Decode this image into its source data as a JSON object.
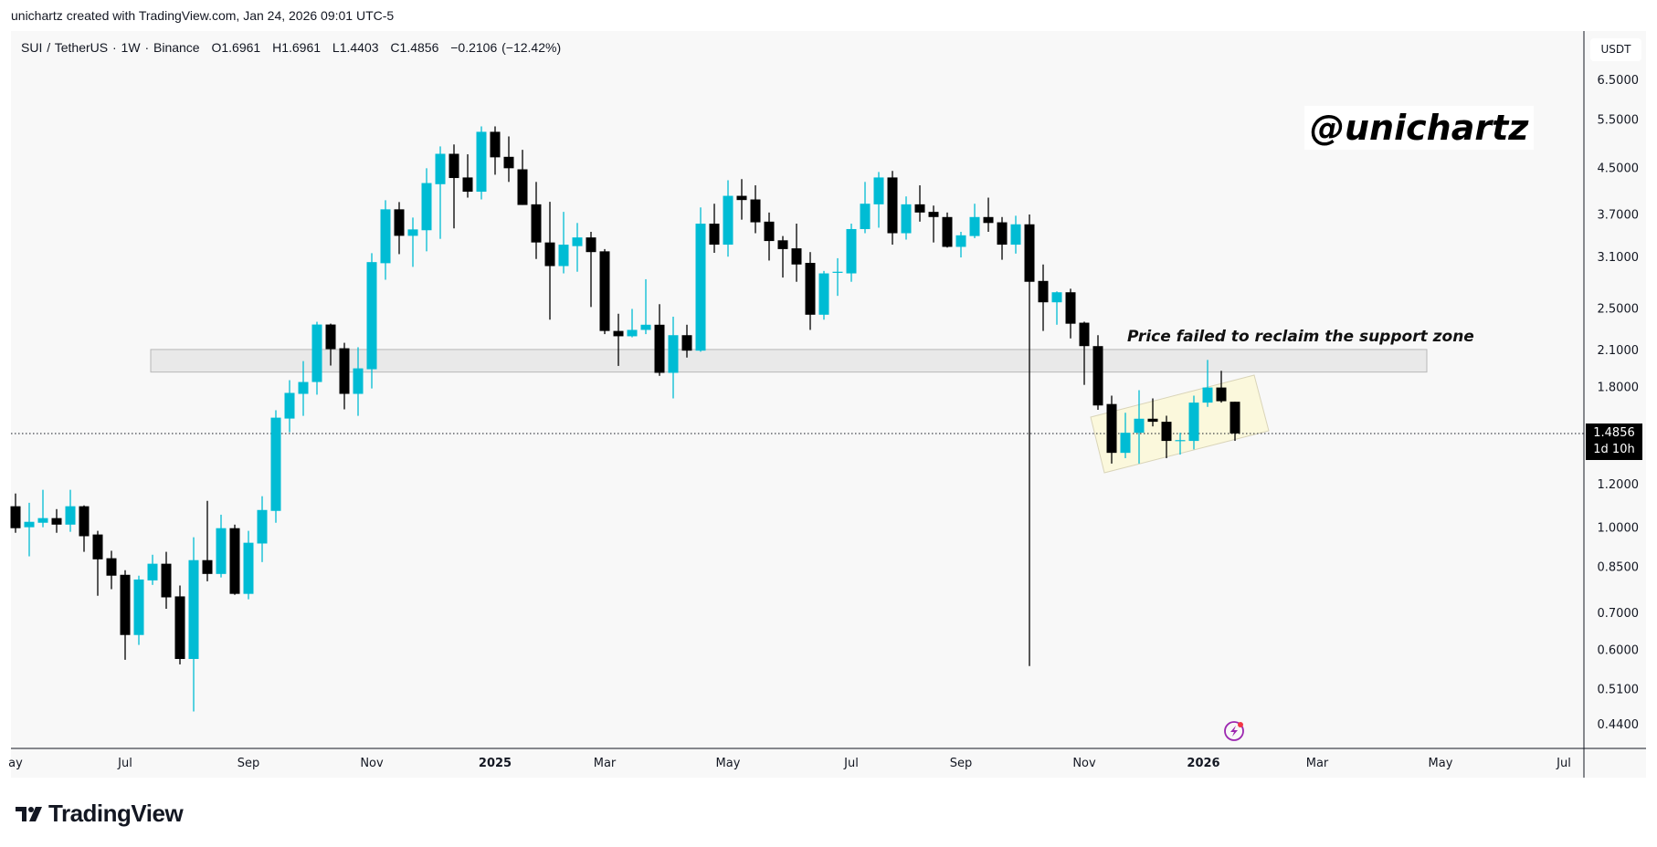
{
  "credit": "unichartz created with TradingView.com, Jan 24, 2026 09:01 UTC-5",
  "legend": {
    "symbol": "SUI / TetherUS · 1W · Binance",
    "open": "O1.6961",
    "high": "H1.6961",
    "low": "L1.4403",
    "close": "C1.4856",
    "change": "−0.2106 (−12.42%)"
  },
  "currency": "USDT",
  "watermark": "@unichartz",
  "annotation": "Price failed to reclaim the support zone",
  "current_price": {
    "value": "1.4856",
    "countdown": "1d 10h"
  },
  "brand": "TradingView",
  "colors": {
    "up": "#00bcd4",
    "down": "#000000",
    "zone": "#e9e9e9",
    "channel": "#fbf8dc"
  },
  "chart_data": {
    "type": "candlestick",
    "title": "SUI / TetherUS · 1W · Binance",
    "scale": "log",
    "ylabel": "USDT",
    "ylim": [
      0.44,
      6.5
    ],
    "y_ticks": [
      "6.5000",
      "5.5000",
      "4.5000",
      "3.7000",
      "3.1000",
      "2.5000",
      "2.1000",
      "1.8000",
      "1.2000",
      "1.0000",
      "0.8500",
      "0.7000",
      "0.6000",
      "0.5100",
      "0.4400"
    ],
    "x_ticks": [
      {
        "label": "ay",
        "week": 0
      },
      {
        "label": "Jul",
        "week": 8
      },
      {
        "label": "Sep",
        "week": 17
      },
      {
        "label": "Nov",
        "week": 26
      },
      {
        "label": "2025",
        "week": 35,
        "bold": true
      },
      {
        "label": "Mar",
        "week": 43
      },
      {
        "label": "May",
        "week": 52
      },
      {
        "label": "Jul",
        "week": 61
      },
      {
        "label": "Sep",
        "week": 69
      },
      {
        "label": "Nov",
        "week": 78
      },
      {
        "label": "2026",
        "week": 86.7,
        "bold": true
      },
      {
        "label": "Mar",
        "week": 95
      },
      {
        "label": "May",
        "week": 104
      },
      {
        "label": "Jul",
        "week": 113
      }
    ],
    "support_zone": [
      1.92,
      2.11
    ],
    "current_price": 1.4856,
    "ohlc": [
      [
        1.096,
        1.156,
        0.981,
        1.0
      ],
      [
        1.004,
        1.112,
        0.889,
        1.027
      ],
      [
        1.023,
        1.174,
        1.004,
        1.043
      ],
      [
        1.043,
        1.083,
        0.981,
        1.015
      ],
      [
        1.015,
        1.174,
        0.985,
        1.096
      ],
      [
        1.096,
        1.1,
        0.906,
        0.967
      ],
      [
        0.974,
        0.989,
        0.754,
        0.878
      ],
      [
        0.882,
        0.91,
        0.775,
        0.82
      ],
      [
        0.823,
        0.839,
        0.577,
        0.64
      ],
      [
        0.64,
        0.82,
        0.614,
        0.807
      ],
      [
        0.804,
        0.895,
        0.789,
        0.862
      ],
      [
        0.862,
        0.906,
        0.714,
        0.749
      ],
      [
        0.752,
        0.787,
        0.566,
        0.579
      ],
      [
        0.579,
        0.963,
        0.465,
        0.875
      ],
      [
        0.875,
        1.121,
        0.801,
        0.826
      ],
      [
        0.826,
        1.058,
        0.814,
        1.0
      ],
      [
        1.0,
        1.015,
        0.757,
        0.76
      ],
      [
        0.76,
        0.989,
        0.743,
        0.941
      ],
      [
        0.938,
        1.143,
        0.868,
        1.079
      ],
      [
        1.075,
        1.637,
        1.023,
        1.587
      ],
      [
        1.581,
        1.856,
        1.493,
        1.76
      ],
      [
        1.753,
        2.01,
        1.599,
        1.842
      ],
      [
        1.842,
        2.369,
        1.747,
        2.342
      ],
      [
        2.342,
        2.351,
        1.973,
        2.113
      ],
      [
        2.121,
        2.17,
        1.643,
        1.753
      ],
      [
        1.753,
        2.13,
        1.599,
        1.95
      ],
      [
        1.943,
        3.155,
        1.793,
        3.04
      ],
      [
        3.026,
        3.937,
        2.824,
        3.79
      ],
      [
        3.79,
        3.907,
        3.143,
        3.393
      ],
      [
        3.393,
        3.662,
        2.98,
        3.485
      ],
      [
        3.473,
        4.5,
        3.18,
        4.23
      ],
      [
        4.21,
        4.93,
        3.35,
        4.78
      ],
      [
        4.78,
        4.97,
        3.5,
        4.32
      ],
      [
        4.33,
        4.77,
        3.98,
        4.08
      ],
      [
        4.08,
        5.36,
        3.95,
        5.24
      ],
      [
        5.24,
        5.36,
        4.38,
        4.71
      ],
      [
        4.72,
        5.14,
        4.25,
        4.5
      ],
      [
        4.48,
        4.86,
        3.86,
        3.86
      ],
      [
        3.87,
        4.25,
        3.08,
        3.3
      ],
      [
        3.3,
        3.91,
        2.39,
        2.99
      ],
      [
        2.99,
        3.75,
        2.9,
        3.27
      ],
      [
        3.25,
        3.58,
        2.92,
        3.37
      ],
      [
        3.37,
        3.45,
        2.52,
        3.17
      ],
      [
        3.18,
        3.21,
        2.25,
        2.28
      ],
      [
        2.28,
        2.45,
        1.97,
        2.23
      ],
      [
        2.23,
        2.5,
        2.22,
        2.29
      ],
      [
        2.29,
        2.83,
        2.25,
        2.34
      ],
      [
        2.34,
        2.55,
        1.89,
        1.914
      ],
      [
        1.914,
        2.42,
        1.72,
        2.24
      ],
      [
        2.24,
        2.34,
        2.04,
        2.1
      ],
      [
        2.1,
        3.82,
        2.09,
        3.57
      ],
      [
        3.57,
        3.88,
        3.16,
        3.27
      ],
      [
        3.27,
        4.28,
        3.11,
        4.01
      ],
      [
        4.01,
        4.3,
        3.63,
        3.94
      ],
      [
        3.95,
        4.19,
        3.43,
        3.59
      ],
      [
        3.6,
        3.74,
        3.06,
        3.32
      ],
      [
        3.33,
        3.39,
        2.85,
        3.21
      ],
      [
        3.22,
        3.57,
        2.8,
        3.01
      ],
      [
        3.03,
        3.17,
        2.29,
        2.44
      ],
      [
        2.44,
        2.93,
        2.39,
        2.9
      ],
      [
        2.91,
        3.09,
        2.64,
        2.92
      ],
      [
        2.9,
        3.57,
        2.8,
        3.49
      ],
      [
        3.49,
        4.25,
        3.43,
        3.88
      ],
      [
        3.87,
        4.43,
        3.51,
        4.33
      ],
      [
        4.33,
        4.45,
        3.27,
        3.43
      ],
      [
        3.43,
        4.0,
        3.34,
        3.87
      ],
      [
        3.87,
        4.19,
        3.6,
        3.74
      ],
      [
        3.75,
        3.85,
        3.3,
        3.67
      ],
      [
        3.67,
        3.74,
        3.23,
        3.24
      ],
      [
        3.24,
        3.45,
        3.1,
        3.4
      ],
      [
        3.39,
        3.88,
        3.36,
        3.67
      ],
      [
        3.67,
        3.98,
        3.45,
        3.58
      ],
      [
        3.59,
        3.67,
        3.07,
        3.27
      ],
      [
        3.27,
        3.69,
        3.15,
        3.56
      ],
      [
        3.56,
        3.71,
        0.562,
        2.8
      ],
      [
        2.81,
        3.01,
        2.28,
        2.57
      ],
      [
        2.57,
        2.69,
        2.34,
        2.68
      ],
      [
        2.68,
        2.72,
        2.21,
        2.35
      ],
      [
        2.36,
        2.37,
        1.82,
        2.14
      ],
      [
        2.14,
        2.24,
        1.64,
        1.67
      ],
      [
        1.68,
        1.74,
        1.31,
        1.37
      ],
      [
        1.37,
        1.62,
        1.34,
        1.49
      ],
      [
        1.49,
        1.78,
        1.31,
        1.58
      ],
      [
        1.58,
        1.72,
        1.53,
        1.56
      ],
      [
        1.56,
        1.6,
        1.34,
        1.44
      ],
      [
        1.44,
        1.49,
        1.36,
        1.445
      ],
      [
        1.44,
        1.74,
        1.39,
        1.69
      ],
      [
        1.69,
        2.02,
        1.66,
        1.8
      ],
      [
        1.8,
        1.93,
        1.69,
        1.7
      ],
      [
        1.6961,
        1.6961,
        1.4403,
        1.4856
      ]
    ]
  }
}
